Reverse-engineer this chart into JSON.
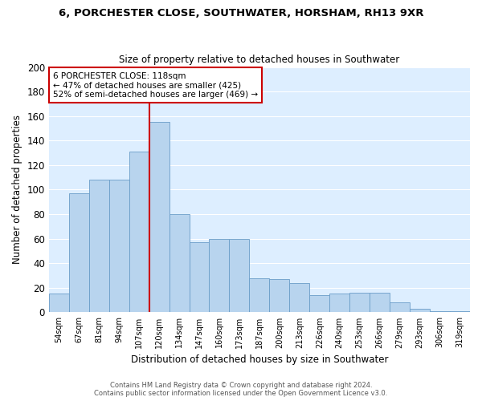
{
  "title1": "6, PORCHESTER CLOSE, SOUTHWATER, HORSHAM, RH13 9XR",
  "title2": "Size of property relative to detached houses in Southwater",
  "xlabel": "Distribution of detached houses by size in Southwater",
  "ylabel": "Number of detached properties",
  "categories": [
    "54sqm",
    "67sqm",
    "81sqm",
    "94sqm",
    "107sqm",
    "120sqm",
    "134sqm",
    "147sqm",
    "160sqm",
    "173sqm",
    "187sqm",
    "200sqm",
    "213sqm",
    "226sqm",
    "240sqm",
    "253sqm",
    "266sqm",
    "279sqm",
    "293sqm",
    "306sqm",
    "319sqm"
  ],
  "values": [
    15,
    97,
    108,
    108,
    131,
    155,
    80,
    57,
    60,
    60,
    28,
    27,
    24,
    14,
    15,
    16,
    16,
    8,
    3,
    1,
    1
  ],
  "bar_color": "#b8d4ee",
  "bar_edge_color": "#6a9dc8",
  "fig_background": "#ffffff",
  "ax_background": "#ddeeff",
  "grid_color": "#ffffff",
  "vline_color": "#cc0000",
  "vline_x_idx": 4.5,
  "annotation_title": "6 PORCHESTER CLOSE: 118sqm",
  "annotation_line1": "← 47% of detached houses are smaller (425)",
  "annotation_line2": "52% of semi-detached houses are larger (469) →",
  "annotation_box_edgecolor": "#cc0000",
  "footnote1": "Contains HM Land Registry data © Crown copyright and database right 2024.",
  "footnote2": "Contains public sector information licensed under the Open Government Licence v3.0.",
  "ylim": [
    0,
    200
  ],
  "yticks": [
    0,
    20,
    40,
    60,
    80,
    100,
    120,
    140,
    160,
    180,
    200
  ]
}
